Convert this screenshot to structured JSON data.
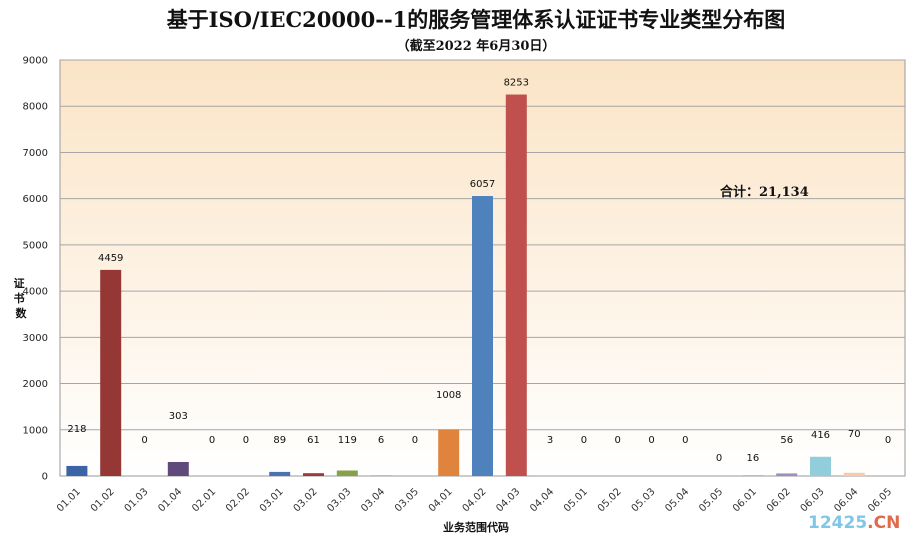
{
  "chart_data": {
    "type": "bar",
    "title": "基于ISO/IEC20000--1的服务管理体系认证证书专业类型分布图",
    "subtitle": "（截至2022 年6月30日）",
    "xlabel": "业务范围代码",
    "ylabel": "证书数",
    "ylim": [
      0,
      9000
    ],
    "yticks": [
      0,
      1000,
      2000,
      3000,
      4000,
      5000,
      6000,
      7000,
      8000,
      9000
    ],
    "grid": true,
    "legend": "none",
    "categories": [
      "01.01",
      "01.02",
      "01.03",
      "01.04",
      "02.01",
      "02.02",
      "03.01",
      "03.02",
      "03.03",
      "03.04",
      "03.05",
      "04.01",
      "04.02",
      "04.03",
      "04.04",
      "05.01",
      "05.02",
      "05.03",
      "05.04",
      "05.05",
      "06.01",
      "06.02",
      "06.03",
      "06.04",
      "06.05"
    ],
    "values": [
      218,
      4459,
      0,
      303,
      0,
      0,
      89,
      61,
      119,
      6,
      0,
      1008,
      6057,
      8253,
      3,
      0,
      0,
      0,
      0,
      0,
      16,
      56,
      416,
      70,
      0
    ],
    "colors": [
      "#3b63a5",
      "#953735",
      "#7a8f3c",
      "#604a7b",
      "#2f8aa6",
      "#e07b39",
      "#4a72b0",
      "#9b3c3a",
      "#86a146",
      "#6d5590",
      "#3796b0",
      "#e0843d",
      "#4f81bd",
      "#c0504d",
      "#9bbb59",
      "#8064a2",
      "#4bacc6",
      "#f79646",
      "#4f81bd",
      "#c0504d",
      "#9bbb59",
      "#a08cc0",
      "#92cddc",
      "#fbc8a8",
      "#8eb4e3"
    ],
    "annotation": "合计：21,134"
  },
  "watermark": {
    "part1": "12425",
    "part2": ".CN"
  }
}
